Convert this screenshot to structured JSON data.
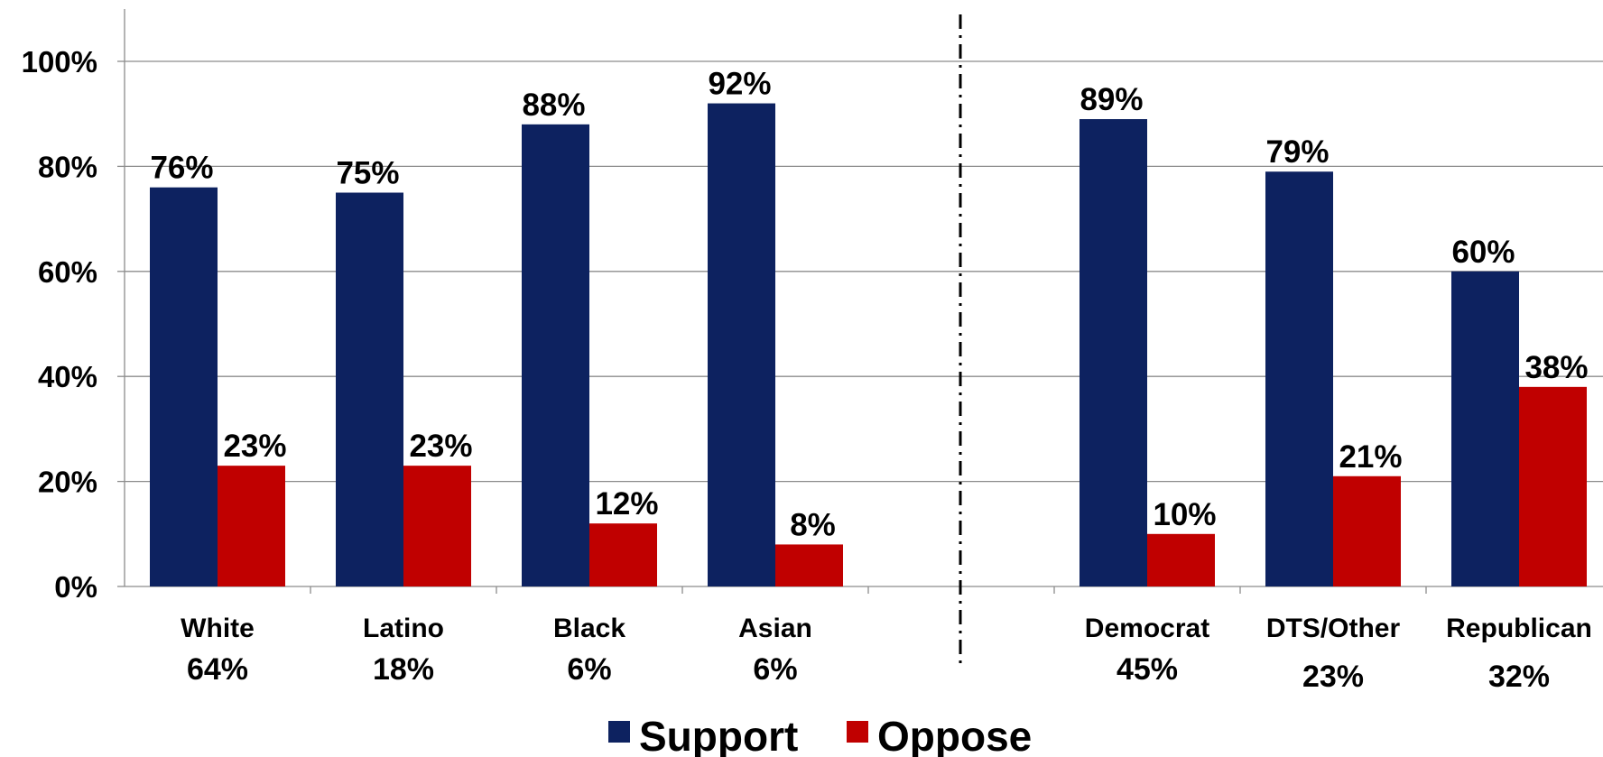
{
  "chart_data": {
    "type": "bar",
    "ylim": [
      0,
      100
    ],
    "y_ticks": [
      "0%",
      "20%",
      "40%",
      "60%",
      "80%",
      "100%"
    ],
    "grid": true,
    "legend_position": "bottom-center",
    "categories": [
      {
        "name": "White",
        "share": "64%"
      },
      {
        "name": "Latino",
        "share": "18%"
      },
      {
        "name": "Black",
        "share": "6%"
      },
      {
        "name": "Asian",
        "share": "6%"
      },
      {
        "name": "Democrat",
        "share": "45%"
      },
      {
        "name": "DTS/Other",
        "share": "23%"
      },
      {
        "name": "Republican",
        "share": "32%"
      }
    ],
    "series": [
      {
        "name": "Support",
        "color": "#0d2260",
        "values": [
          76,
          75,
          88,
          92,
          89,
          79,
          60
        ]
      },
      {
        "name": "Oppose",
        "color": "#c00000",
        "values": [
          23,
          23,
          12,
          8,
          10,
          21,
          38
        ]
      }
    ]
  }
}
